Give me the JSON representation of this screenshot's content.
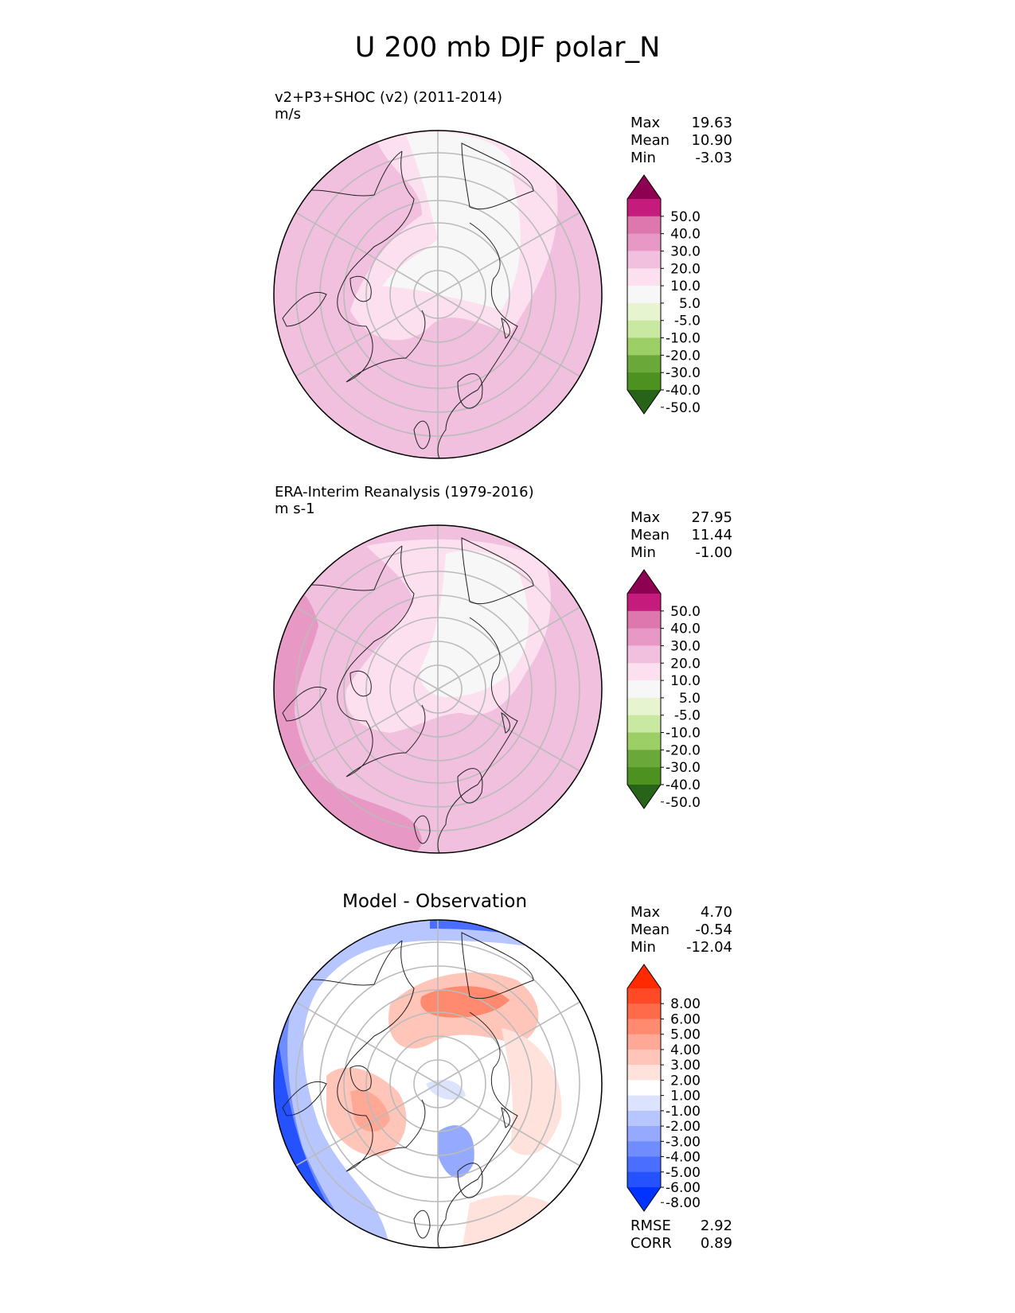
{
  "figure": {
    "title": "U 200 mb DJF polar_N"
  },
  "panels": [
    {
      "id": "test",
      "title_line1": "v2+P3+SHOC (v2) (2011-2014)",
      "title_line2": "m/s",
      "stats": {
        "max_label": "Max",
        "max": "19.63",
        "mean_label": "Mean",
        "mean": "10.90",
        "min_label": "Min",
        "min": "-3.03"
      },
      "colorbar": {
        "levels": [
          "50.0",
          "40.0",
          "30.0",
          "20.0",
          "10.0",
          "5.0",
          "-5.0",
          "-10.0",
          "-20.0",
          "-30.0",
          "-40.0",
          "-50.0"
        ],
        "colors": [
          "#8e0152",
          "#c51b7d",
          "#de77ae",
          "#e898c5",
          "#f1c0de",
          "#fde0ef",
          "#f7f7f7",
          "#e6f5d0",
          "#c9e8a2",
          "#9ccf66",
          "#6aa83a",
          "#4d9221",
          "#276419"
        ]
      }
    },
    {
      "id": "reference",
      "title_line1": "ERA-Interim Reanalysis (1979-2016)",
      "title_line2": "m s-1",
      "stats": {
        "max_label": "Max",
        "max": "27.95",
        "mean_label": "Mean",
        "mean": "11.44",
        "min_label": "Min",
        "min": "-1.00"
      },
      "colorbar": {
        "levels": [
          "50.0",
          "40.0",
          "30.0",
          "20.0",
          "10.0",
          "5.0",
          "-5.0",
          "-10.0",
          "-20.0",
          "-30.0",
          "-40.0",
          "-50.0"
        ],
        "colors": [
          "#8e0152",
          "#c51b7d",
          "#de77ae",
          "#e898c5",
          "#f1c0de",
          "#fde0ef",
          "#f7f7f7",
          "#e6f5d0",
          "#c9e8a2",
          "#9ccf66",
          "#6aa83a",
          "#4d9221",
          "#276419"
        ]
      }
    },
    {
      "id": "difference",
      "title_line1": "Model - Observation",
      "stats": {
        "max_label": "Max",
        "max": "4.70",
        "mean_label": "Mean",
        "mean": "-0.54",
        "min_label": "Min",
        "min": "-12.04"
      },
      "extra_stats": {
        "rmse_label": "RMSE",
        "rmse": "2.92",
        "corr_label": "CORR",
        "corr": "0.89"
      },
      "colorbar": {
        "levels": [
          "8.00",
          "6.00",
          "5.00",
          "4.00",
          "3.00",
          "2.00",
          "1.00",
          "-1.00",
          "-2.00",
          "-3.00",
          "-4.00",
          "-5.00",
          "-6.00",
          "-8.00"
        ],
        "colors": [
          "#ff2a00",
          "#ff4a25",
          "#ff6a4a",
          "#ff8a70",
          "#ffa895",
          "#ffc5b8",
          "#ffe2dc",
          "#ffffff",
          "#dce3ff",
          "#b8c6ff",
          "#95aaff",
          "#708dff",
          "#4a6eff",
          "#2552ff",
          "#0033ff"
        ]
      }
    }
  ],
  "map_colors": {
    "test_base": "#f1c0de",
    "test_light": "#fde0ef",
    "test_white": "#f7f7f7",
    "ref_base": "#f1c0de",
    "ref_light": "#fde0ef",
    "ref_white": "#f7f7f7",
    "ref_strong": "#e898c5",
    "diff_white": "#ffffff",
    "grid": "#bbbbbb",
    "coast": "#222222"
  }
}
